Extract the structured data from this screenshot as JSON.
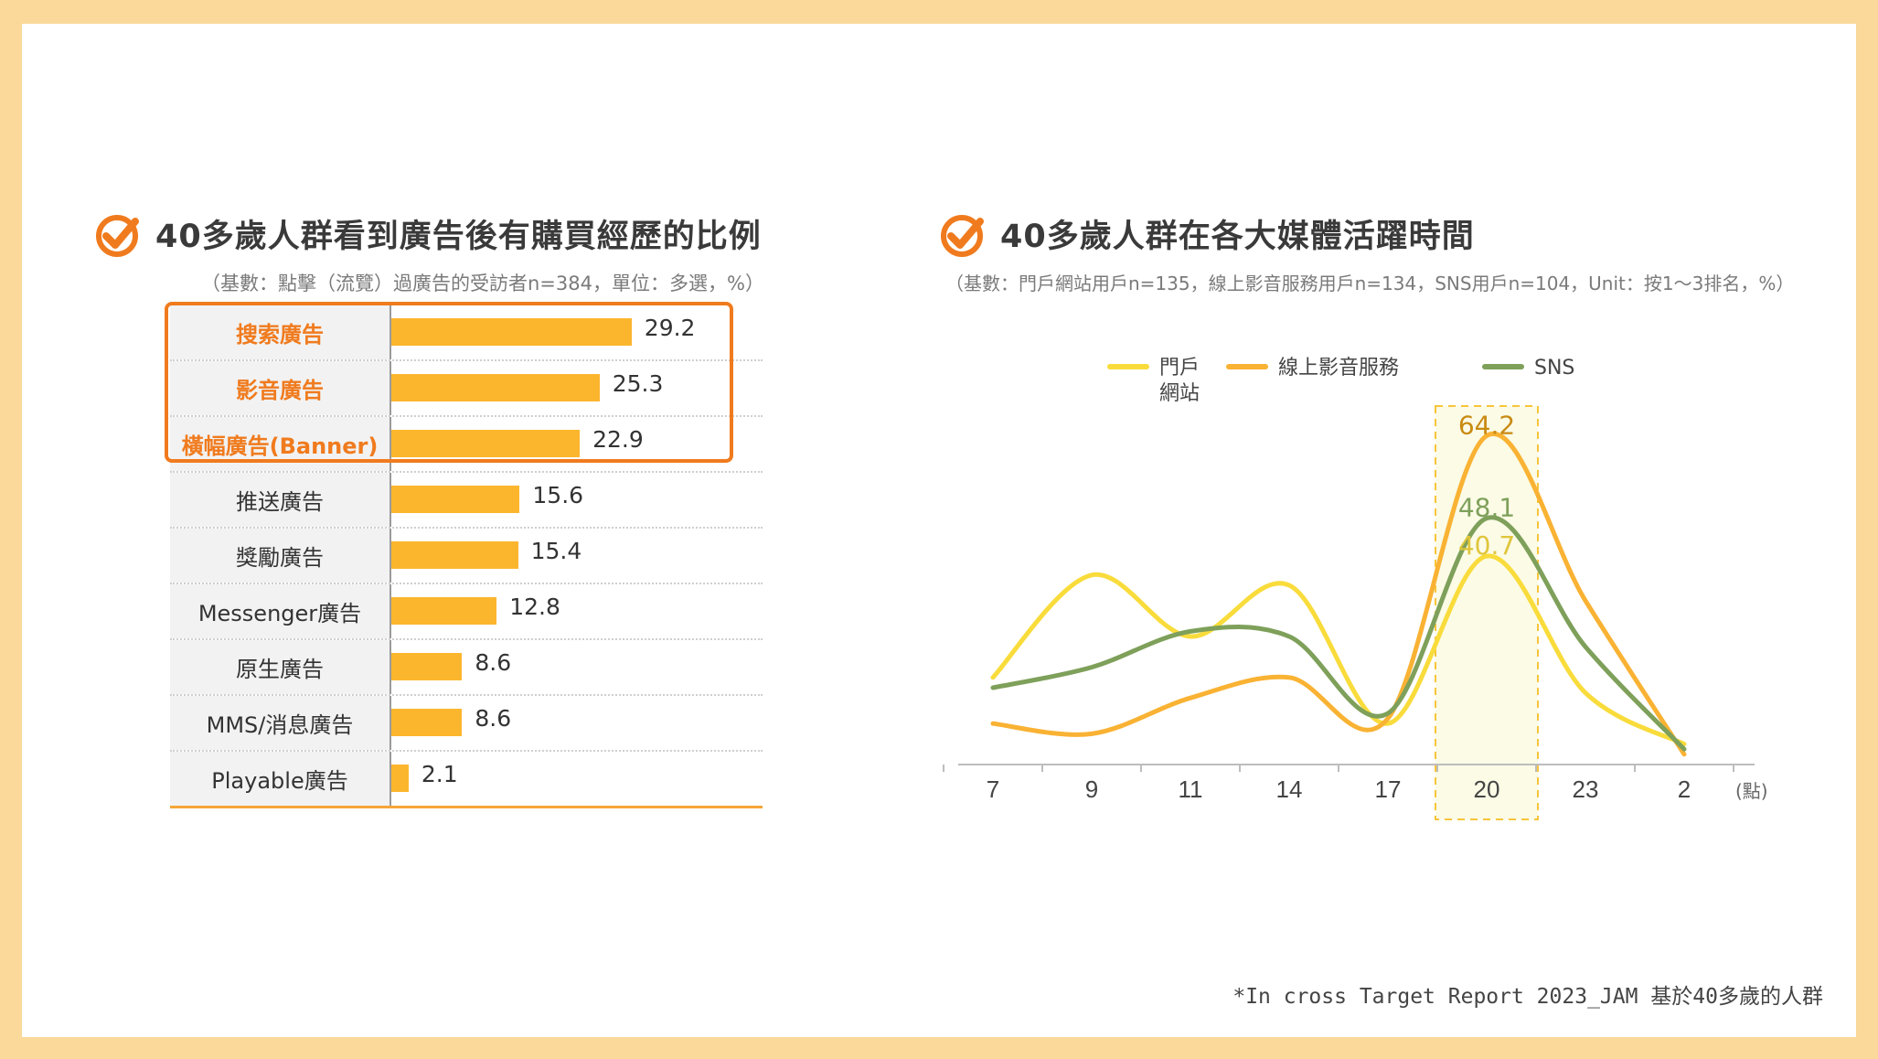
{
  "left": {
    "title": "40多歲人群看到廣告後有購買經歷的比例",
    "subtitle": "（基數：點擊（流覽）過廣告的受訪者n=384，單位：多選，%）"
  },
  "right": {
    "title": "40多歲人群在各大媒體活躍時間",
    "subtitle": "（基數：門戶網站用戶n=135，線上影音服務用戶n=134，SNS用戶n=104，Unit：按1～3排名，%）"
  },
  "footnote": "*In cross Target Report 2023_JAM 基於40多歲的人群",
  "colors": {
    "accent": "#f07b1e",
    "bar": "#fbb62e",
    "portal": "#f9dc3b",
    "video": "#f9b233",
    "sns": "#7ea05a"
  },
  "chart_data": [
    {
      "type": "bar",
      "orientation": "horizontal",
      "categories": [
        "搜索廣告",
        "影音廣告",
        "橫幅廣告(Banner)",
        "推送廣告",
        "獎勵廣告",
        "Messenger廣告",
        "原生廣告",
        "MMS/消息廣告",
        "Playable廣告"
      ],
      "values": [
        29.2,
        25.3,
        22.9,
        15.6,
        15.4,
        12.8,
        8.6,
        8.6,
        2.1
      ],
      "value_labels": [
        "29.2",
        "25.3",
        "22.9",
        "15.6",
        "15.4",
        "12.8",
        "8.6",
        "8.6",
        "2.1"
      ],
      "highlighted": [
        0,
        1,
        2
      ]
    },
    {
      "type": "line",
      "x": [
        "7",
        "9",
        "11",
        "14",
        "17",
        "20",
        "23",
        "2"
      ],
      "x_unit": "(點)",
      "series": [
        {
          "name": "門戶網站",
          "legend_lines": [
            "門戶",
            "網站"
          ],
          "values": [
            17,
            37,
            25,
            35,
            8,
            40.7,
            14,
            4
          ]
        },
        {
          "name": "線上影音服務",
          "legend_lines": [
            "線上影音服務"
          ],
          "values": [
            8,
            6,
            13,
            17,
            9,
            64.2,
            32,
            2
          ]
        },
        {
          "name": "SNS",
          "legend_lines": [
            "SNS"
          ],
          "values": [
            15,
            19,
            26,
            25,
            10,
            48.1,
            23,
            3
          ]
        }
      ],
      "annotations": [
        {
          "x": "20",
          "series": "線上影音服務",
          "label": "64.2"
        },
        {
          "x": "20",
          "series": "SNS",
          "label": "48.1"
        },
        {
          "x": "20",
          "series": "門戶網站",
          "label": "40.7"
        }
      ],
      "highlight_x": "20",
      "ylim": [
        0,
        70
      ]
    }
  ]
}
